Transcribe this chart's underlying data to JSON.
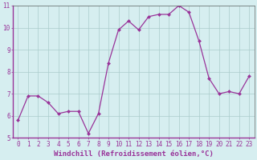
{
  "x": [
    0,
    1,
    2,
    3,
    4,
    5,
    6,
    7,
    8,
    9,
    10,
    11,
    12,
    13,
    14,
    15,
    16,
    17,
    18,
    19,
    20,
    21,
    22,
    23
  ],
  "y": [
    5.8,
    6.9,
    6.9,
    6.6,
    6.1,
    6.2,
    6.2,
    5.2,
    6.1,
    8.4,
    9.9,
    10.3,
    9.9,
    10.5,
    10.6,
    10.6,
    11.0,
    10.7,
    9.4,
    7.7,
    7.0,
    7.1,
    7.0,
    7.8
  ],
  "line_color": "#993399",
  "marker_color": "#993399",
  "bg_color": "#d6eef0",
  "grid_color": "#aacccc",
  "tick_label_color": "#993399",
  "xlabel": "Windchill (Refroidissement éolien,°C)",
  "xlabel_color": "#993399",
  "xlim": [
    -0.5,
    23.5
  ],
  "ylim": [
    5,
    11
  ],
  "yticks": [
    5,
    6,
    7,
    8,
    9,
    10,
    11
  ],
  "xticks": [
    0,
    1,
    2,
    3,
    4,
    5,
    6,
    7,
    8,
    9,
    10,
    11,
    12,
    13,
    14,
    15,
    16,
    17,
    18,
    19,
    20,
    21,
    22,
    23
  ],
  "tick_fontsize": 5.5,
  "xlabel_fontsize": 6.5,
  "linewidth": 0.9,
  "markersize": 2.0
}
